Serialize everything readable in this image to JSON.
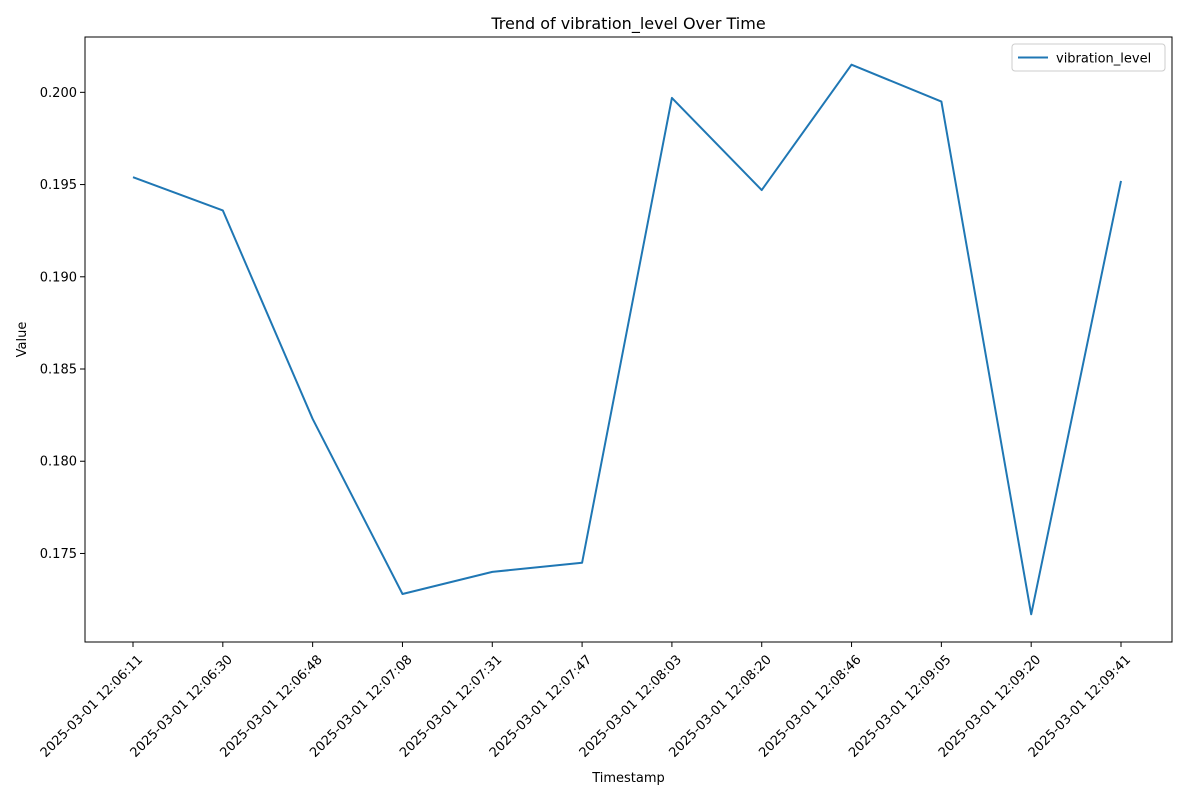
{
  "colors": {
    "series": "#1f77b4",
    "axis": "#000000",
    "background": "#ffffff",
    "legend_border": "#cccccc"
  },
  "chart_data": {
    "type": "line",
    "title": "Trend of vibration_level Over Time",
    "xlabel": "Timestamp",
    "ylabel": "Value",
    "x": [
      "2025-03-01 12:06:11",
      "2025-03-01 12:06:30",
      "2025-03-01 12:06:48",
      "2025-03-01 12:07:08",
      "2025-03-01 12:07:31",
      "2025-03-01 12:07:47",
      "2025-03-01 12:08:03",
      "2025-03-01 12:08:20",
      "2025-03-01 12:08:46",
      "2025-03-01 12:09:05",
      "2025-03-01 12:09:20",
      "2025-03-01 12:09:41"
    ],
    "series": [
      {
        "name": "vibration_level",
        "values": [
          0.1954,
          0.1936,
          0.1823,
          0.1728,
          0.174,
          0.1745,
          0.1997,
          0.1947,
          0.2015,
          0.1995,
          0.1717,
          0.1952
        ]
      }
    ],
    "yticks": [
      0.175,
      0.18,
      0.185,
      0.19,
      0.195,
      0.2
    ],
    "ytick_labels": [
      "0.175",
      "0.180",
      "0.185",
      "0.190",
      "0.195",
      "0.200"
    ],
    "ylim": [
      0.1702,
      0.203
    ],
    "grid": false,
    "legend_position": "top-right"
  }
}
